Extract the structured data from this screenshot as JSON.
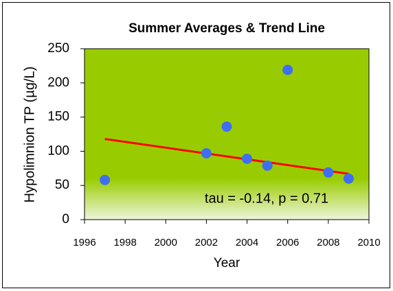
{
  "chart_data": {
    "type": "scatter",
    "title": "Summer Averages  & Trend Line",
    "x_label": "Year",
    "y_label": "Hypolimnion TP (µg/L)",
    "annotation": "tau = -0.14,  p = 0.71",
    "series": [
      {
        "x": [
          1997,
          2002,
          2003,
          2004,
          2005,
          2006,
          2008,
          2009
        ],
        "values": [
          58,
          97,
          136,
          89,
          79,
          219,
          69,
          60
        ],
        "color": "#3f6ff0"
      }
    ],
    "trend_line": {
      "x": [
        1997,
        2009
      ],
      "values": [
        118,
        67
      ],
      "color": "#ff0000"
    },
    "xlim": [
      1996,
      2010
    ],
    "xticks": [
      1996,
      1998,
      2000,
      2002,
      2004,
      2006,
      2008,
      2010
    ],
    "ylim": [
      0,
      250
    ],
    "yticks": [
      0,
      50,
      100,
      150,
      200,
      250
    ],
    "plot_background": "#99cc00"
  }
}
